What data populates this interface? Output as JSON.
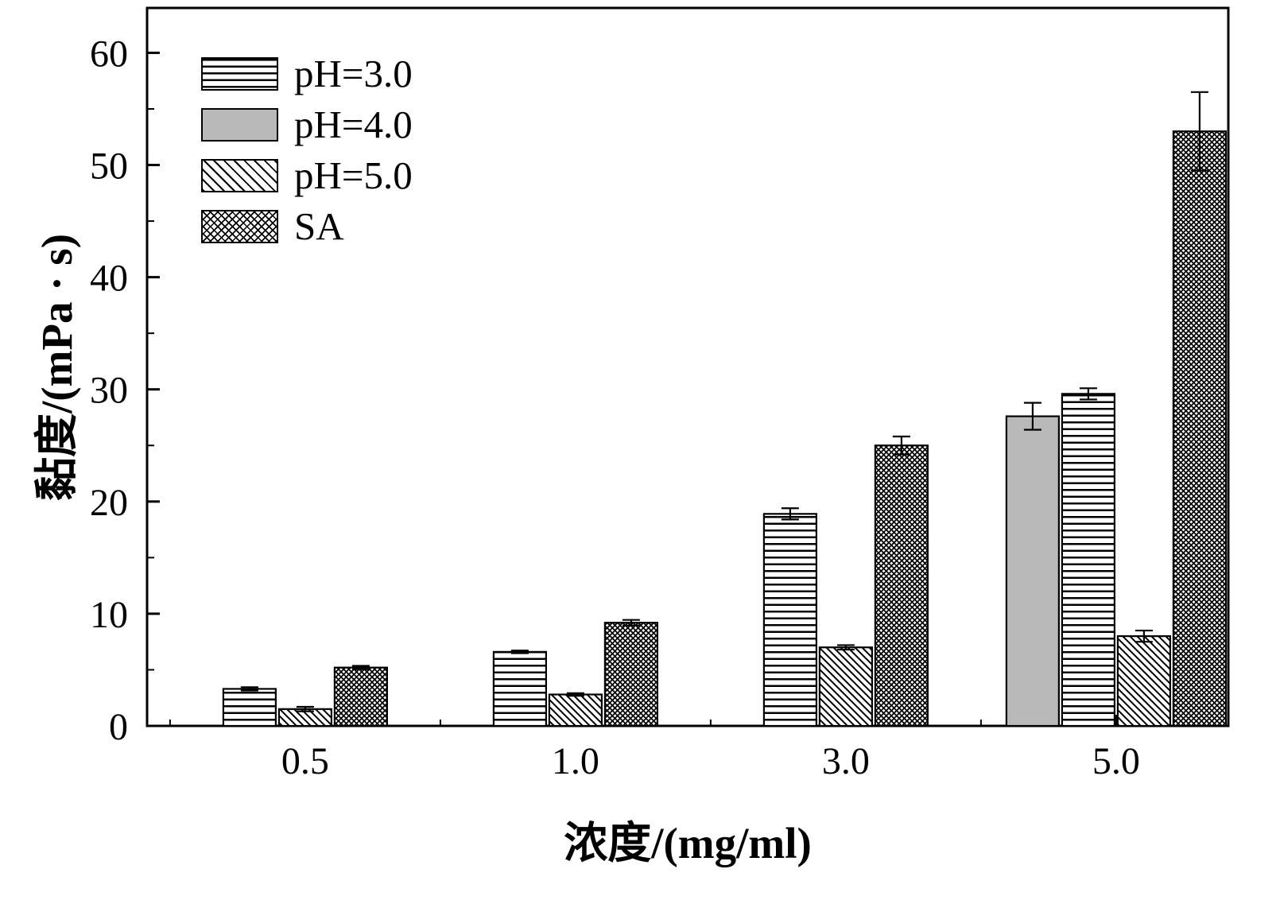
{
  "figure": {
    "background": "#ffffff",
    "axis_color": "#000000",
    "gray_fill": "#b9b9b9"
  },
  "chart_data": {
    "type": "bar",
    "title": "",
    "xlabel": "浓度/(mg/ml)",
    "ylabel": "黏度/(mPa · s)",
    "categories": [
      "0.5",
      "1.0",
      "3.0",
      "5.0"
    ],
    "yticks": [
      0,
      10,
      20,
      30,
      40,
      50,
      60
    ],
    "y_minor_step": 5,
    "ylim": [
      0,
      64
    ],
    "grid": false,
    "legend_position": "top-left-inside",
    "legend_entries": [
      "pH=3.0",
      "pH=4.0",
      "pH=5.0",
      "SA"
    ],
    "series": [
      {
        "name": "pH=3.0",
        "pattern": "horizontal-stripes",
        "values": [
          3.3,
          6.6,
          18.9,
          29.6
        ],
        "errors": [
          0.15,
          0.12,
          0.5,
          0.5
        ]
      },
      {
        "name": "pH=4.0",
        "pattern": "solid-gray",
        "values": [
          null,
          null,
          null,
          27.6
        ],
        "errors": [
          null,
          null,
          null,
          1.2
        ]
      },
      {
        "name": "pH=5.0",
        "pattern": "diagonal-stripes",
        "values": [
          1.5,
          2.8,
          7.0,
          8.0
        ],
        "errors": [
          0.2,
          0.12,
          0.2,
          0.5
        ]
      },
      {
        "name": "SA",
        "pattern": "crosshatch",
        "values": [
          5.2,
          9.2,
          25.0,
          53.0
        ],
        "errors": [
          0.15,
          0.25,
          0.8,
          3.5
        ]
      }
    ],
    "bar_draw_order": [
      1,
      0,
      2,
      3
    ]
  }
}
